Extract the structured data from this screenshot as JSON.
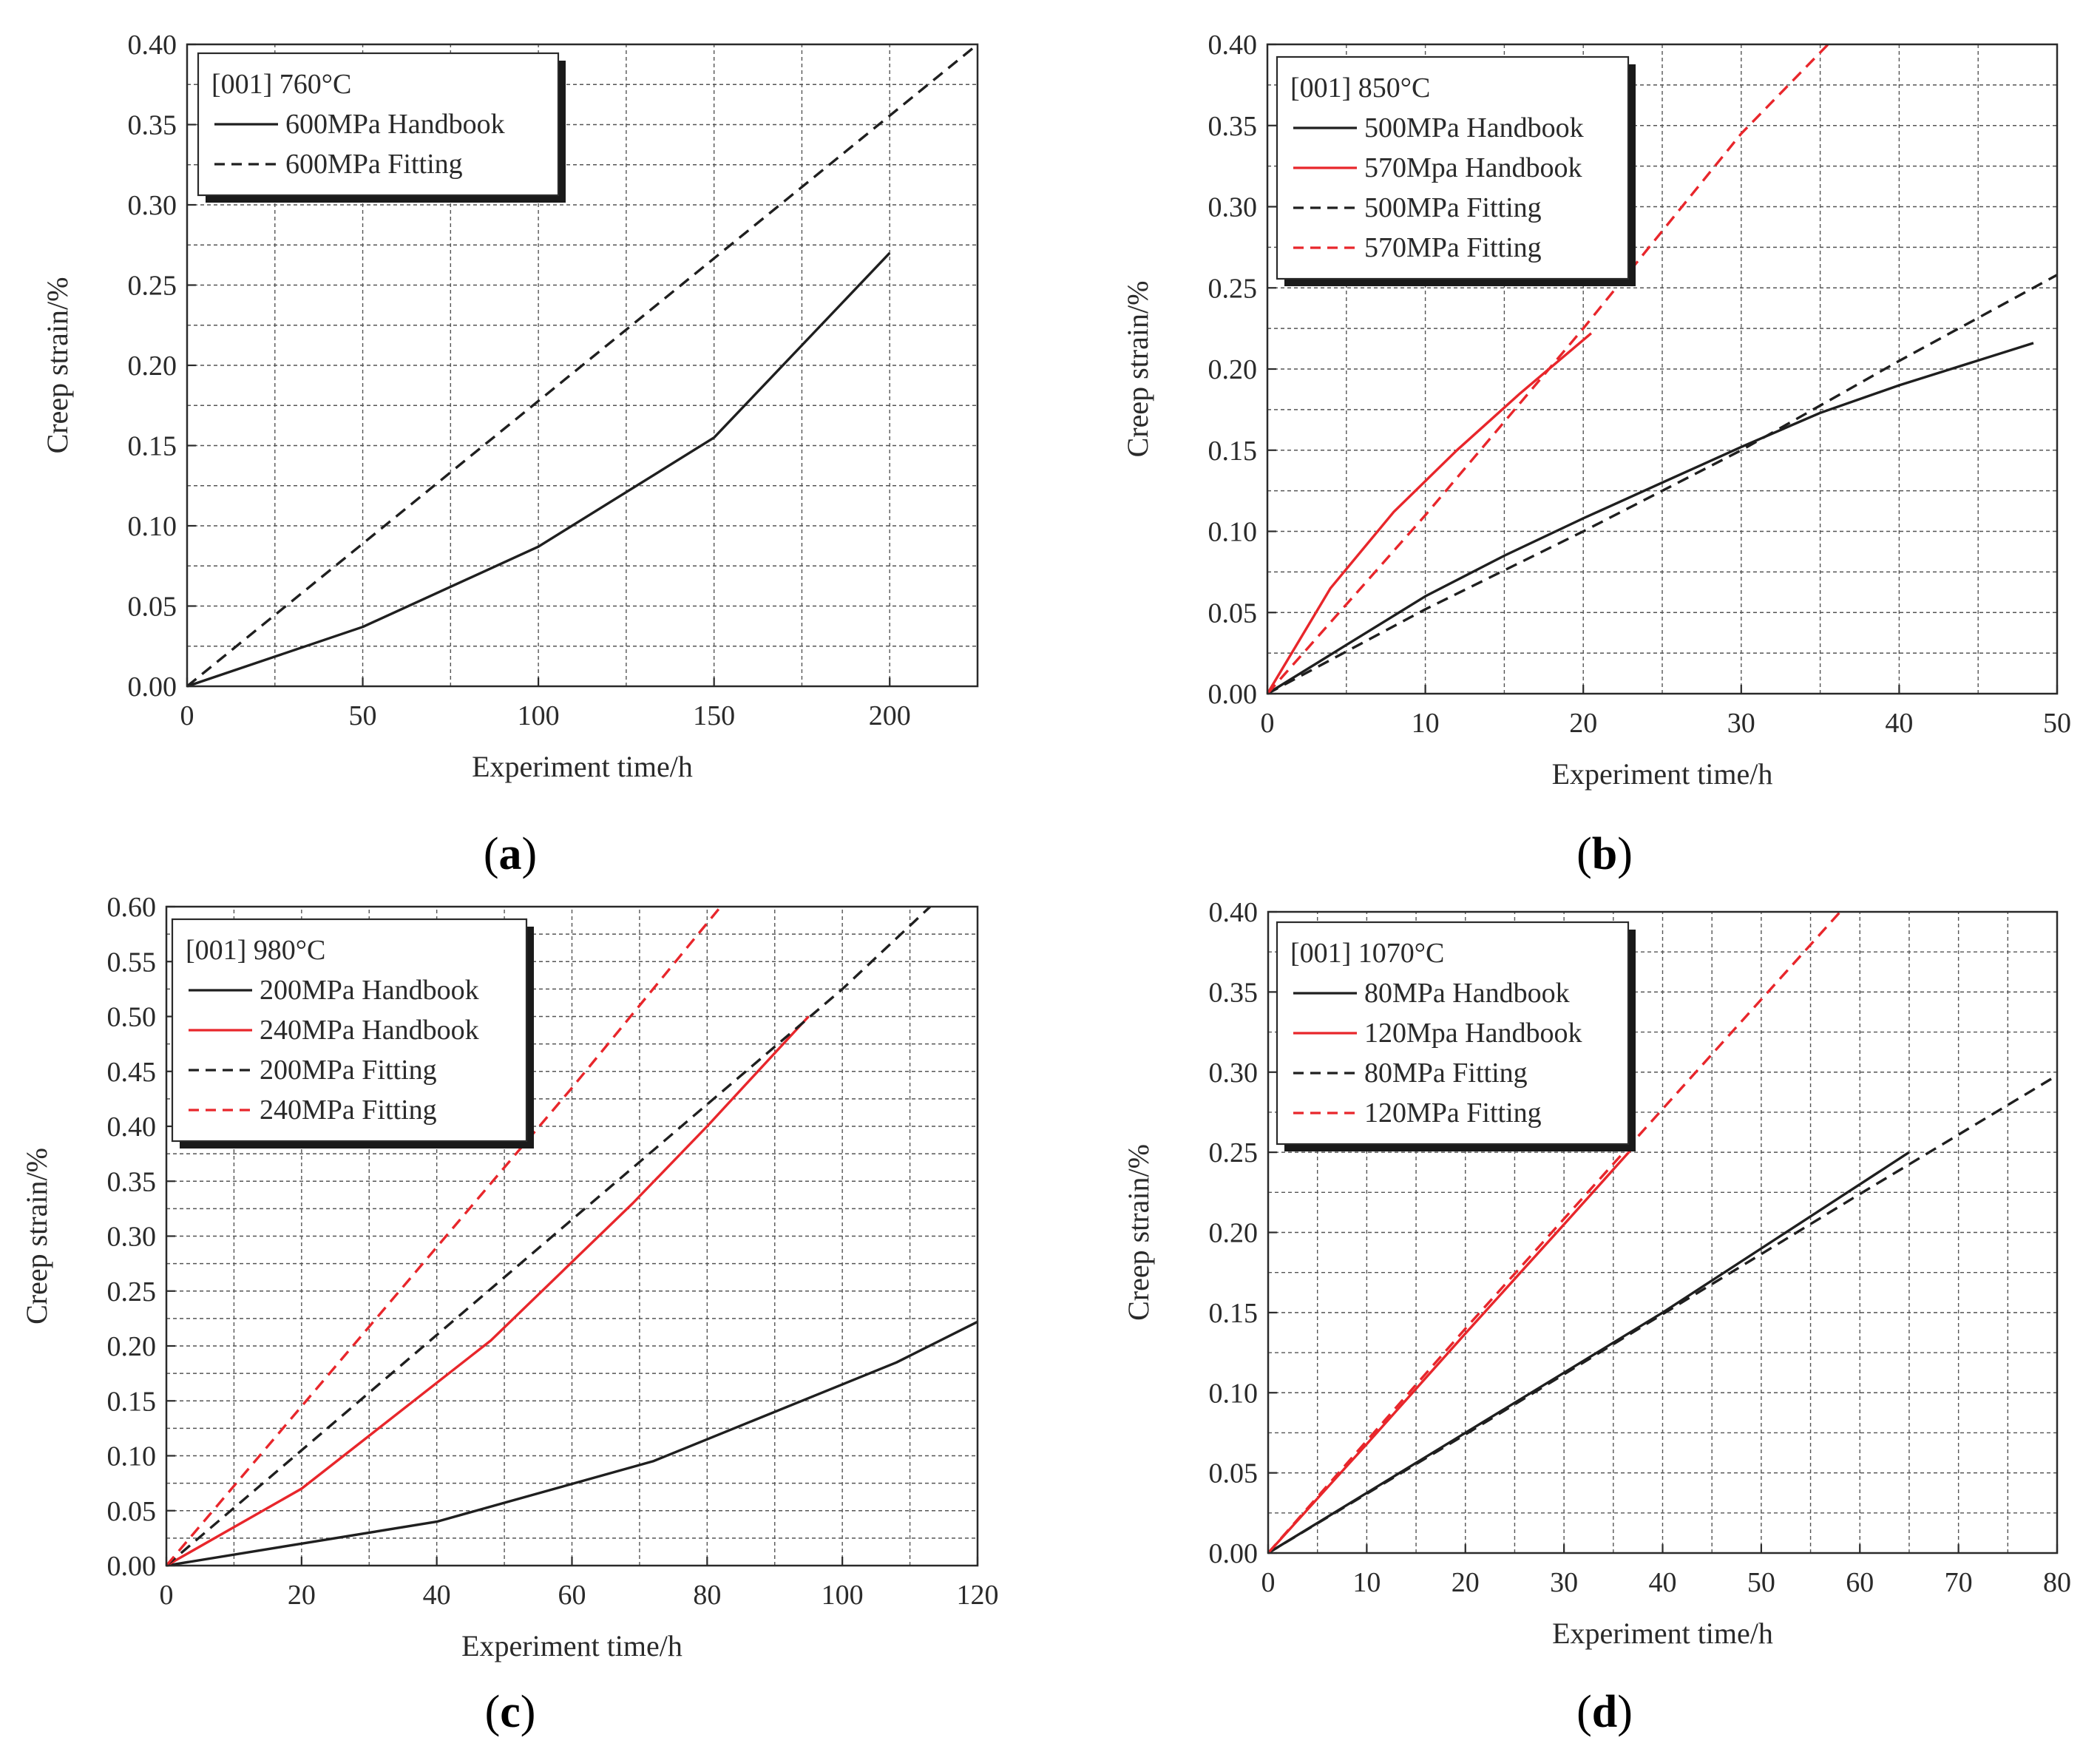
{
  "figure_labels": [
    {
      "open": "(",
      "letter": "a",
      "close": ")"
    },
    {
      "open": "(",
      "letter": "b",
      "close": ")"
    },
    {
      "open": "(",
      "letter": "c",
      "close": ")"
    },
    {
      "open": "(",
      "letter": "d",
      "close": ")"
    }
  ],
  "colors": {
    "black_series": "#1f1f1f",
    "red_series": "#e8262b",
    "grid": "#555555"
  },
  "chart_data": [
    {
      "id": "a",
      "type": "line",
      "title": "",
      "xlabel": "Experiment time/h",
      "ylabel": "Creep strain/%",
      "xlim": [
        0,
        225
      ],
      "ylim": [
        0,
        0.4
      ],
      "xticks": [
        0,
        50,
        100,
        150,
        200
      ],
      "xtick_labels": [
        "0",
        "50",
        "100",
        "150",
        "200"
      ],
      "yticks": [
        0,
        0.05,
        0.1,
        0.15,
        0.2,
        0.25,
        0.3,
        0.35,
        0.4
      ],
      "ytick_labels": [
        "0.00",
        "0.05",
        "0.10",
        "0.15",
        "0.20",
        "0.25",
        "0.30",
        "0.35",
        "0.40"
      ],
      "grid": true,
      "legend_placement": "top-left",
      "legend_header": "[001] 760°C",
      "series": [
        {
          "name": "600MPa Handbook",
          "color": "#1f1f1f",
          "dash": "solid",
          "x": [
            0,
            50,
            100,
            150,
            200
          ],
          "y": [
            0,
            0.037,
            0.087,
            0.155,
            0.27
          ]
        },
        {
          "name": "600MPa Fitting",
          "color": "#1f1f1f",
          "dash": "dashed",
          "x": [
            0,
            225
          ],
          "y": [
            0,
            0.4
          ]
        }
      ]
    },
    {
      "id": "b",
      "type": "line",
      "title": "",
      "xlabel": "Experiment time/h",
      "ylabel": "Creep strain/%",
      "xlim": [
        0,
        50
      ],
      "ylim": [
        0,
        0.4
      ],
      "xticks": [
        0,
        10,
        20,
        30,
        40,
        50
      ],
      "xtick_labels": [
        "0",
        "10",
        "20",
        "30",
        "40",
        "50"
      ],
      "yticks": [
        0,
        0.05,
        0.1,
        0.15,
        0.2,
        0.25,
        0.3,
        0.35,
        0.4
      ],
      "ytick_labels": [
        "0.00",
        "0.05",
        "0.10",
        "0.15",
        "0.20",
        "0.25",
        "0.30",
        "0.35",
        "0.40"
      ],
      "grid": true,
      "legend_placement": "top-left",
      "legend_header": "[001] 850°C",
      "series": [
        {
          "name": "500MPa Handbook",
          "color": "#1f1f1f",
          "dash": "solid",
          "x": [
            0,
            5,
            10,
            15,
            20,
            25,
            30,
            35,
            40,
            48.5
          ],
          "y": [
            0,
            0.03,
            0.06,
            0.085,
            0.108,
            0.13,
            0.152,
            0.173,
            0.19,
            0.216
          ]
        },
        {
          "name": "570Mpa Handbook",
          "color": "#e8262b",
          "dash": "solid",
          "x": [
            0,
            4,
            8,
            12,
            16,
            20.5
          ],
          "y": [
            0,
            0.065,
            0.112,
            0.15,
            0.185,
            0.222
          ]
        },
        {
          "name": "500MPa Fitting",
          "color": "#1f1f1f",
          "dash": "dashed",
          "x": [
            0,
            10,
            20,
            30,
            40,
            50
          ],
          "y": [
            0,
            0.052,
            0.1,
            0.15,
            0.205,
            0.258
          ]
        },
        {
          "name": "570MPa Fitting",
          "color": "#e8262b",
          "dash": "dashed",
          "x": [
            0,
            10,
            20,
            30,
            35.5
          ],
          "y": [
            0,
            0.11,
            0.225,
            0.345,
            0.4
          ]
        }
      ]
    },
    {
      "id": "c",
      "type": "line",
      "title": "",
      "xlabel": "Experiment time/h",
      "ylabel": "Creep strain/%",
      "xlim": [
        0,
        120
      ],
      "ylim": [
        0,
        0.6
      ],
      "xticks": [
        0,
        20,
        40,
        60,
        80,
        100,
        120
      ],
      "xtick_labels": [
        "0",
        "20",
        "40",
        "60",
        "80",
        "100",
        "120"
      ],
      "yticks": [
        0,
        0.05,
        0.1,
        0.15,
        0.2,
        0.25,
        0.3,
        0.35,
        0.4,
        0.45,
        0.5,
        0.55,
        0.6
      ],
      "ytick_labels": [
        "0.00",
        "0.05",
        "0.10",
        "0.15",
        "0.20",
        "0.25",
        "0.30",
        "0.35",
        "0.40",
        "0.45",
        "0.50",
        "0.55",
        "0.60"
      ],
      "grid": true,
      "legend_placement": "top-left",
      "legend_header": "[001] 980°C",
      "series": [
        {
          "name": "200MPa Handbook",
          "color": "#1f1f1f",
          "dash": "solid",
          "x": [
            0,
            20,
            40,
            72,
            108,
            120
          ],
          "y": [
            0,
            0.02,
            0.04,
            0.095,
            0.185,
            0.222
          ]
        },
        {
          "name": "240MPa Handbook",
          "color": "#e8262b",
          "dash": "solid",
          "x": [
            0,
            20,
            48,
            69,
            80,
            95
          ],
          "y": [
            0,
            0.07,
            0.205,
            0.33,
            0.4,
            0.5
          ]
        },
        {
          "name": "200MPa Fitting",
          "color": "#1f1f1f",
          "dash": "dashed",
          "x": [
            0,
            20,
            60,
            100,
            113
          ],
          "y": [
            0,
            0.105,
            0.315,
            0.525,
            0.6
          ]
        },
        {
          "name": "240MPa Fitting",
          "color": "#e8262b",
          "dash": "dashed",
          "x": [
            0,
            20,
            60,
            82
          ],
          "y": [
            0,
            0.145,
            0.435,
            0.6
          ]
        }
      ]
    },
    {
      "id": "d",
      "type": "line",
      "title": "",
      "xlabel": "Experiment time/h",
      "ylabel": "Creep strain/%",
      "xlim": [
        0,
        80
      ],
      "ylim": [
        0,
        0.4
      ],
      "xticks": [
        0,
        10,
        20,
        30,
        40,
        50,
        60,
        70,
        80
      ],
      "xtick_labels": [
        "0",
        "10",
        "20",
        "30",
        "40",
        "50",
        "60",
        "70",
        "80"
      ],
      "yticks": [
        0,
        0.05,
        0.1,
        0.15,
        0.2,
        0.25,
        0.3,
        0.35,
        0.4
      ],
      "ytick_labels": [
        "0.00",
        "0.05",
        "0.10",
        "0.15",
        "0.20",
        "0.25",
        "0.30",
        "0.35",
        "0.40"
      ],
      "grid": true,
      "legend_placement": "top-left",
      "legend_header": "[001] 1070°C",
      "series": [
        {
          "name": "80MPa Handbook",
          "color": "#1f1f1f",
          "dash": "solid",
          "x": [
            0,
            20,
            40,
            65
          ],
          "y": [
            0,
            0.075,
            0.15,
            0.25
          ]
        },
        {
          "name": "120Mpa Handbook",
          "color": "#e8262b",
          "dash": "solid",
          "x": [
            0,
            10,
            20,
            30,
            37
          ],
          "y": [
            0,
            0.068,
            0.137,
            0.205,
            0.253
          ]
        },
        {
          "name": "80MPa Fitting",
          "color": "#1f1f1f",
          "dash": "dashed",
          "x": [
            0,
            20,
            40,
            60,
            80
          ],
          "y": [
            0,
            0.074,
            0.149,
            0.224,
            0.298
          ]
        },
        {
          "name": "120MPa Fitting",
          "color": "#e8262b",
          "dash": "dashed",
          "x": [
            0,
            20,
            40,
            58
          ],
          "y": [
            0,
            0.14,
            0.277,
            0.4
          ]
        }
      ]
    }
  ]
}
